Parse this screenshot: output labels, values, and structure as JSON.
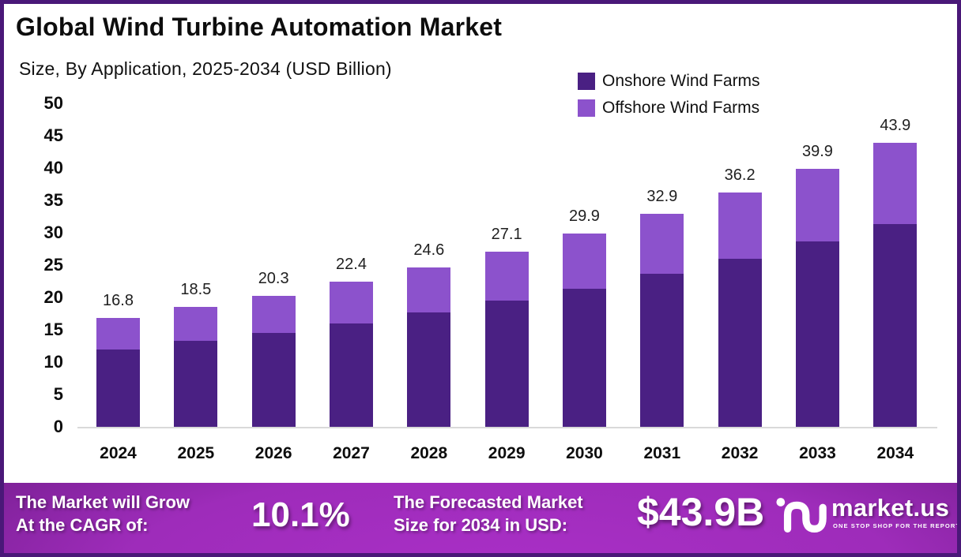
{
  "header": {
    "title": "Global Wind Turbine Automation Market",
    "subtitle": "Size, By Application, 2025-2034 (USD Billion)"
  },
  "legend": [
    {
      "label": "Onshore Wind Farms",
      "color": "#4a2083"
    },
    {
      "label": "Offshore Wind Farms",
      "color": "#8c52cc"
    }
  ],
  "chart_data": {
    "type": "bar",
    "stacked": true,
    "title": "Global Wind Turbine Automation Market Size, By Application, 2025-2034 (USD Billion)",
    "categories": [
      "2024",
      "2025",
      "2026",
      "2027",
      "2028",
      "2029",
      "2030",
      "2031",
      "2032",
      "2033",
      "2034"
    ],
    "series": [
      {
        "name": "Onshore Wind Farms",
        "color": "#4a2083",
        "values": [
          11.9,
          13.3,
          14.5,
          16.0,
          17.7,
          19.5,
          21.4,
          23.6,
          26.0,
          28.7,
          31.4
        ]
      },
      {
        "name": "Offshore Wind Farms",
        "color": "#8c52cc",
        "values": [
          4.9,
          5.2,
          5.8,
          6.4,
          6.9,
          7.6,
          8.5,
          9.3,
          10.2,
          11.2,
          12.5
        ]
      }
    ],
    "totals": [
      16.8,
      18.5,
      20.3,
      22.4,
      24.6,
      27.1,
      29.9,
      32.9,
      36.2,
      39.9,
      43.9
    ],
    "total_labels": [
      "16.8",
      "18.5",
      "20.3",
      "22.4",
      "24.6",
      "27.1",
      "29.9",
      "32.9",
      "36.2",
      "39.9",
      "43.9"
    ],
    "xlabel": "",
    "ylabel": "",
    "ylim": [
      0,
      50
    ],
    "ytick_step": 5,
    "grid": false,
    "legend_position": "top-right"
  },
  "footer": {
    "cagr_label_lines": [
      "The Market will Grow",
      "At the CAGR of:"
    ],
    "cagr_value": "10.1%",
    "forecast_label_lines": [
      "The Forecasted Market",
      "Size for 2034 in USD:"
    ],
    "forecast_value": "$43.9B",
    "brand_name": "market.us",
    "brand_tagline": "ONE STOP SHOP FOR THE REPORTS"
  },
  "colors": {
    "frame_border": "#4a1878",
    "axis_line": "#d9d9d9",
    "banner_bright": "#a92fc6",
    "banner_dark": "#471059"
  }
}
